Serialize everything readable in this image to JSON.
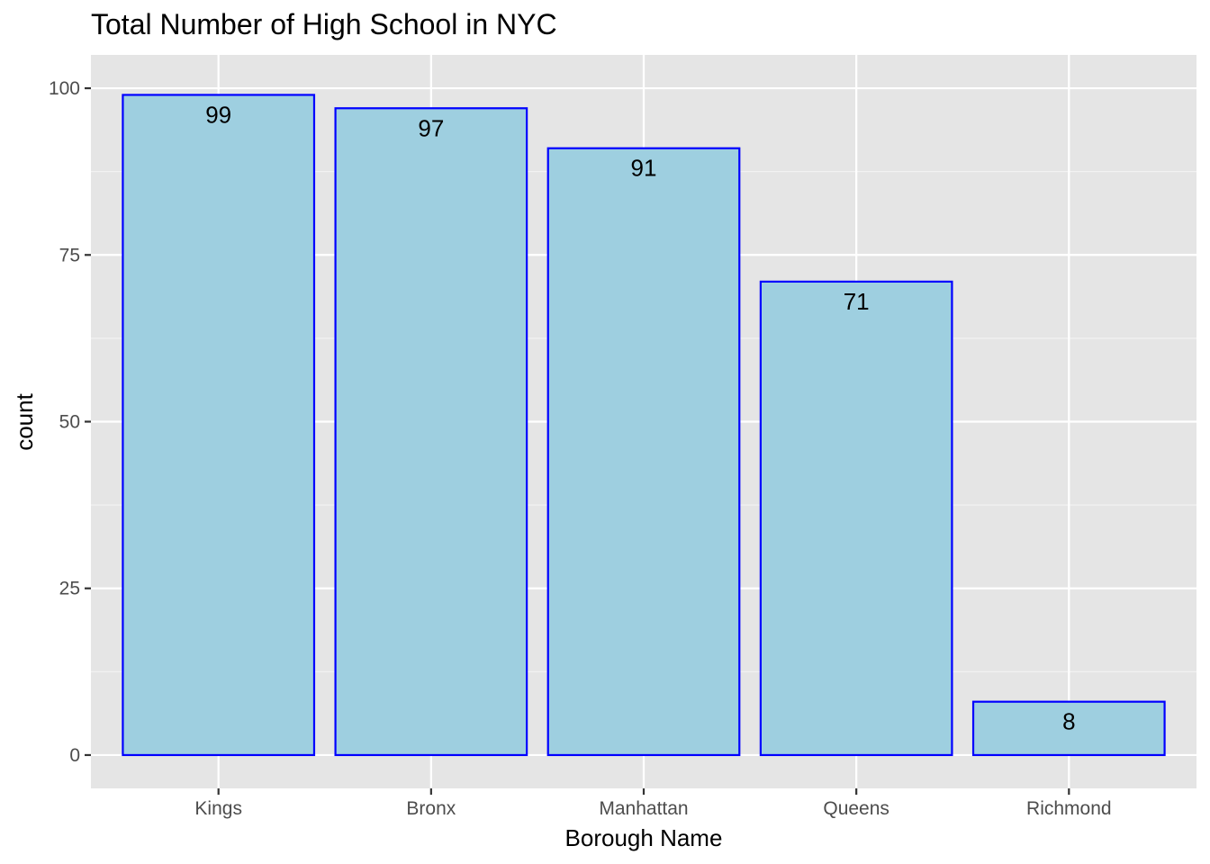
{
  "chart_data": {
    "type": "bar",
    "title": "Total Number of High School in NYC",
    "xlabel": "Borough Name",
    "ylabel": "count",
    "categories": [
      "Kings",
      "Bronx",
      "Manhattan",
      "Queens",
      "Richmond"
    ],
    "values": [
      99,
      97,
      91,
      71,
      8
    ],
    "data_labels": [
      "99",
      "97",
      "91",
      "71",
      "8"
    ],
    "ylim": [
      -5,
      105
    ],
    "yticks": [
      0,
      25,
      50,
      75,
      100
    ],
    "ytick_labels": [
      "0",
      "25",
      "50",
      "75",
      "100"
    ],
    "grid": true,
    "legend": "none",
    "colors": {
      "bar_fill": "#9ecfe0",
      "bar_stroke": "#0000ff",
      "panel_bg": "#e5e5e5",
      "grid_major": "#ffffff",
      "grid_minor": "#f2f2f2",
      "tick": "#333333",
      "tick_text": "#4d4d4d"
    }
  }
}
